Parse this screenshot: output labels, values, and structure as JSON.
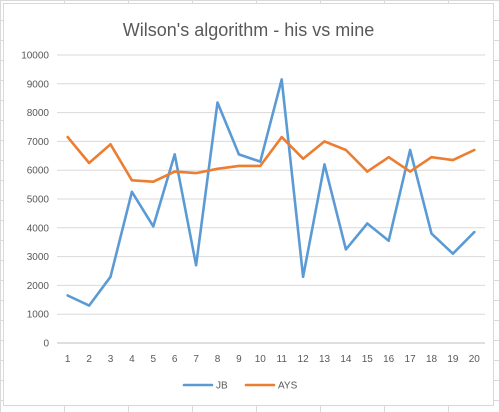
{
  "chart_data": {
    "type": "line",
    "title": "Wilson's algorithm - his vs mine",
    "xlabel": "",
    "ylabel": "",
    "ylim": [
      0,
      10000
    ],
    "y_ticks": [
      0,
      1000,
      2000,
      3000,
      4000,
      5000,
      6000,
      7000,
      8000,
      9000,
      10000
    ],
    "categories": [
      "1",
      "2",
      "3",
      "4",
      "5",
      "6",
      "7",
      "8",
      "9",
      "10",
      "11",
      "12",
      "13",
      "14",
      "15",
      "16",
      "17",
      "18",
      "19",
      "20"
    ],
    "grid": "horizontal",
    "legend_position": "bottom",
    "series": [
      {
        "name": "JB",
        "color": "#5b9bd5",
        "values": [
          1650,
          1300,
          2300,
          5250,
          4050,
          6550,
          2700,
          8350,
          6550,
          6300,
          9150,
          2300,
          6200,
          3250,
          4150,
          3550,
          6700,
          3800,
          3100,
          3850
        ]
      },
      {
        "name": "AYS",
        "color": "#ed7d31",
        "values": [
          7150,
          6250,
          6900,
          5650,
          5600,
          5950,
          5900,
          6050,
          6150,
          6150,
          7150,
          6400,
          7000,
          6700,
          5950,
          6450,
          5950,
          6450,
          6350,
          6700
        ]
      }
    ]
  }
}
